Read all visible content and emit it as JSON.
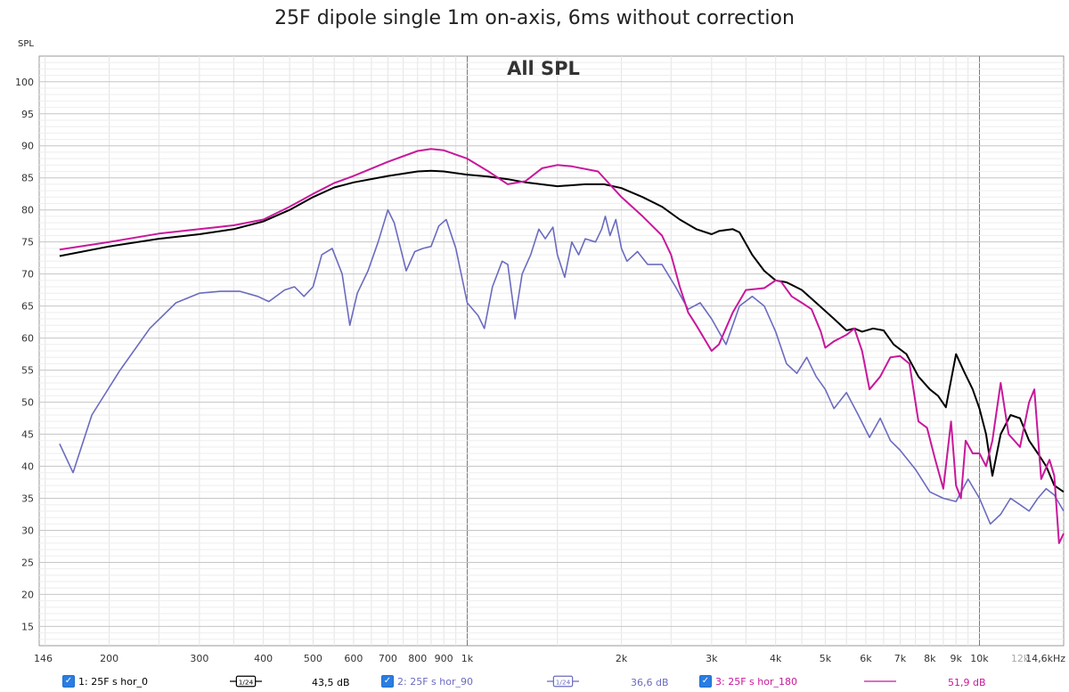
{
  "chart_data": {
    "type": "line",
    "title": "25F dipole single 1m on-axis, 6ms without correction",
    "subtitle": "All SPL",
    "ylabel": "SPL",
    "xlabel": "",
    "x_scale": "log",
    "xlim": [
      146,
      14600
    ],
    "ylim": [
      12,
      104
    ],
    "grid": true,
    "x_ticks": [
      {
        "v": 146,
        "label": "146"
      },
      {
        "v": 200,
        "label": "200"
      },
      {
        "v": 300,
        "label": "300"
      },
      {
        "v": 400,
        "label": "400"
      },
      {
        "v": 500,
        "label": "500"
      },
      {
        "v": 600,
        "label": "600"
      },
      {
        "v": 700,
        "label": "700"
      },
      {
        "v": 800,
        "label": "800"
      },
      {
        "v": 900,
        "label": "900"
      },
      {
        "v": 1000,
        "label": "1k"
      },
      {
        "v": 2000,
        "label": "2k"
      },
      {
        "v": 3000,
        "label": "3k"
      },
      {
        "v": 4000,
        "label": "4k"
      },
      {
        "v": 5000,
        "label": "5k"
      },
      {
        "v": 6000,
        "label": "6k"
      },
      {
        "v": 7000,
        "label": "7k"
      },
      {
        "v": 8000,
        "label": "8k"
      },
      {
        "v": 9000,
        "label": "9k"
      },
      {
        "v": 10000,
        "label": "10k"
      },
      {
        "v": 12000,
        "label": "12k"
      },
      {
        "v": 14600,
        "label": "14,6kHz"
      }
    ],
    "y_ticks": [
      15,
      20,
      25,
      30,
      35,
      40,
      45,
      50,
      55,
      60,
      65,
      70,
      75,
      80,
      85,
      90,
      95,
      100
    ],
    "series": [
      {
        "name": "1: 25F s hor_0",
        "color": "#000000",
        "points": [
          [
            160,
            72.8
          ],
          [
            200,
            74.3
          ],
          [
            250,
            75.5
          ],
          [
            300,
            76.2
          ],
          [
            350,
            77.0
          ],
          [
            400,
            78.2
          ],
          [
            450,
            80.0
          ],
          [
            500,
            82.0
          ],
          [
            550,
            83.5
          ],
          [
            600,
            84.3
          ],
          [
            700,
            85.3
          ],
          [
            800,
            86.0
          ],
          [
            850,
            86.1
          ],
          [
            900,
            86.0
          ],
          [
            1000,
            85.5
          ],
          [
            1100,
            85.2
          ],
          [
            1200,
            84.8
          ],
          [
            1300,
            84.3
          ],
          [
            1500,
            83.7
          ],
          [
            1700,
            84.0
          ],
          [
            1850,
            84.0
          ],
          [
            2000,
            83.4
          ],
          [
            2200,
            82.0
          ],
          [
            2400,
            80.5
          ],
          [
            2600,
            78.5
          ],
          [
            2800,
            77.0
          ],
          [
            3000,
            76.2
          ],
          [
            3100,
            76.7
          ],
          [
            3300,
            77.0
          ],
          [
            3400,
            76.5
          ],
          [
            3600,
            73.0
          ],
          [
            3800,
            70.5
          ],
          [
            4000,
            69.0
          ],
          [
            4200,
            68.7
          ],
          [
            4500,
            67.5
          ],
          [
            4800,
            65.5
          ],
          [
            5200,
            63.0
          ],
          [
            5500,
            61.2
          ],
          [
            5700,
            61.5
          ],
          [
            5900,
            61.0
          ],
          [
            6200,
            61.5
          ],
          [
            6500,
            61.2
          ],
          [
            6800,
            59.0
          ],
          [
            7200,
            57.5
          ],
          [
            7600,
            54.0
          ],
          [
            8000,
            52.0
          ],
          [
            8300,
            51.0
          ],
          [
            8600,
            49.2
          ],
          [
            9000,
            57.5
          ],
          [
            9300,
            55.0
          ],
          [
            9700,
            52.0
          ],
          [
            10000,
            49.0
          ],
          [
            10300,
            45.0
          ],
          [
            10600,
            38.5
          ],
          [
            11000,
            45.0
          ],
          [
            11500,
            48.0
          ],
          [
            12000,
            47.5
          ],
          [
            12500,
            44.0
          ],
          [
            13000,
            42.0
          ],
          [
            13500,
            40.0
          ],
          [
            14000,
            37.0
          ],
          [
            14600,
            36.0
          ]
        ]
      },
      {
        "name": "2: 25F s hor_90",
        "color": "#6b6bc0",
        "points": [
          [
            160,
            43.5
          ],
          [
            170,
            39.0
          ],
          [
            185,
            48.0
          ],
          [
            210,
            55.0
          ],
          [
            240,
            61.5
          ],
          [
            270,
            65.5
          ],
          [
            300,
            67.0
          ],
          [
            330,
            67.3
          ],
          [
            360,
            67.3
          ],
          [
            390,
            66.5
          ],
          [
            410,
            65.7
          ],
          [
            440,
            67.5
          ],
          [
            460,
            68.0
          ],
          [
            480,
            66.5
          ],
          [
            500,
            68.0
          ],
          [
            520,
            73.0
          ],
          [
            545,
            74.0
          ],
          [
            570,
            70.0
          ],
          [
            590,
            62.0
          ],
          [
            610,
            67.0
          ],
          [
            640,
            70.5
          ],
          [
            670,
            75.0
          ],
          [
            700,
            80.0
          ],
          [
            720,
            78.0
          ],
          [
            760,
            70.5
          ],
          [
            790,
            73.5
          ],
          [
            820,
            74.0
          ],
          [
            850,
            74.3
          ],
          [
            880,
            77.5
          ],
          [
            910,
            78.5
          ],
          [
            950,
            74.0
          ],
          [
            1000,
            65.5
          ],
          [
            1050,
            63.5
          ],
          [
            1080,
            61.5
          ],
          [
            1120,
            68.0
          ],
          [
            1170,
            72.0
          ],
          [
            1200,
            71.5
          ],
          [
            1240,
            63.0
          ],
          [
            1280,
            70.0
          ],
          [
            1330,
            73.0
          ],
          [
            1380,
            77.0
          ],
          [
            1420,
            75.5
          ],
          [
            1470,
            77.3
          ],
          [
            1500,
            73.0
          ],
          [
            1550,
            69.5
          ],
          [
            1600,
            75.0
          ],
          [
            1650,
            73.0
          ],
          [
            1700,
            75.5
          ],
          [
            1780,
            75.0
          ],
          [
            1830,
            77.0
          ],
          [
            1860,
            79.0
          ],
          [
            1900,
            76.0
          ],
          [
            1950,
            78.5
          ],
          [
            2000,
            74.0
          ],
          [
            2050,
            72.0
          ],
          [
            2150,
            73.5
          ],
          [
            2250,
            71.5
          ],
          [
            2400,
            71.5
          ],
          [
            2550,
            68.0
          ],
          [
            2700,
            64.5
          ],
          [
            2850,
            65.5
          ],
          [
            3000,
            63.0
          ],
          [
            3200,
            59.0
          ],
          [
            3400,
            65.0
          ],
          [
            3600,
            66.5
          ],
          [
            3800,
            65.0
          ],
          [
            4000,
            61.0
          ],
          [
            4200,
            56.0
          ],
          [
            4400,
            54.5
          ],
          [
            4600,
            57.0
          ],
          [
            4800,
            54.0
          ],
          [
            5000,
            52.0
          ],
          [
            5200,
            49.0
          ],
          [
            5500,
            51.5
          ],
          [
            5800,
            48.0
          ],
          [
            6100,
            44.5
          ],
          [
            6400,
            47.5
          ],
          [
            6700,
            44.0
          ],
          [
            7000,
            42.5
          ],
          [
            7500,
            39.5
          ],
          [
            8000,
            36.0
          ],
          [
            8500,
            35.0
          ],
          [
            9000,
            34.5
          ],
          [
            9500,
            38.0
          ],
          [
            10000,
            35.0
          ],
          [
            10500,
            31.0
          ],
          [
            11000,
            32.5
          ],
          [
            11500,
            35.0
          ],
          [
            12000,
            34.0
          ],
          [
            12500,
            33.0
          ],
          [
            13000,
            35.0
          ],
          [
            13500,
            36.5
          ],
          [
            14000,
            35.5
          ],
          [
            14600,
            33.0
          ]
        ]
      },
      {
        "name": "3: 25F s hor_180",
        "color": "#c8189b",
        "points": [
          [
            160,
            73.8
          ],
          [
            200,
            75.0
          ],
          [
            250,
            76.3
          ],
          [
            300,
            77.0
          ],
          [
            350,
            77.6
          ],
          [
            400,
            78.5
          ],
          [
            450,
            80.5
          ],
          [
            500,
            82.5
          ],
          [
            550,
            84.2
          ],
          [
            600,
            85.3
          ],
          [
            700,
            87.5
          ],
          [
            800,
            89.2
          ],
          [
            850,
            89.5
          ],
          [
            900,
            89.3
          ],
          [
            1000,
            88.0
          ],
          [
            1100,
            86.0
          ],
          [
            1200,
            84.0
          ],
          [
            1300,
            84.5
          ],
          [
            1400,
            86.5
          ],
          [
            1500,
            87.0
          ],
          [
            1600,
            86.8
          ],
          [
            1800,
            86.0
          ],
          [
            2000,
            82.0
          ],
          [
            2200,
            79.0
          ],
          [
            2400,
            76.0
          ],
          [
            2500,
            73.0
          ],
          [
            2600,
            68.0
          ],
          [
            2700,
            64.0
          ],
          [
            2800,
            62.0
          ],
          [
            3000,
            58.0
          ],
          [
            3100,
            59.0
          ],
          [
            3300,
            64.0
          ],
          [
            3500,
            67.5
          ],
          [
            3800,
            67.8
          ],
          [
            4000,
            69.0
          ],
          [
            4100,
            68.8
          ],
          [
            4300,
            66.5
          ],
          [
            4500,
            65.5
          ],
          [
            4700,
            64.5
          ],
          [
            4900,
            61.0
          ],
          [
            5000,
            58.5
          ],
          [
            5200,
            59.5
          ],
          [
            5500,
            60.5
          ],
          [
            5700,
            61.5
          ],
          [
            5900,
            58.0
          ],
          [
            6100,
            52.0
          ],
          [
            6400,
            54.0
          ],
          [
            6700,
            57.0
          ],
          [
            7000,
            57.2
          ],
          [
            7300,
            56.0
          ],
          [
            7600,
            47.0
          ],
          [
            7900,
            46.0
          ],
          [
            8200,
            41.0
          ],
          [
            8500,
            36.5
          ],
          [
            8800,
            47.0
          ],
          [
            9000,
            37.0
          ],
          [
            9200,
            35.0
          ],
          [
            9400,
            44.0
          ],
          [
            9700,
            42.0
          ],
          [
            10000,
            42.0
          ],
          [
            10300,
            40.0
          ],
          [
            10600,
            44.0
          ],
          [
            11000,
            53.0
          ],
          [
            11400,
            45.0
          ],
          [
            12000,
            43.0
          ],
          [
            12500,
            50.0
          ],
          [
            12800,
            52.0
          ],
          [
            13200,
            38.0
          ],
          [
            13700,
            41.0
          ],
          [
            14000,
            38.5
          ],
          [
            14300,
            28.0
          ],
          [
            14600,
            29.5
          ]
        ]
      }
    ]
  },
  "legend": {
    "items": [
      {
        "label": "1: 25F s hor_0",
        "smoothing": "1/24",
        "level": "43,5 dB",
        "color": "#000000",
        "checked": "✓"
      },
      {
        "label": "2: 25F s hor_90",
        "smoothing": "1/24",
        "level": "36,6 dB",
        "color": "#6b6bc0",
        "checked": "✓"
      },
      {
        "label": "3: 25F s hor_180",
        "smoothing": "",
        "level": "51,9 dB",
        "color": "#c8189b",
        "checked": "✓"
      }
    ]
  }
}
